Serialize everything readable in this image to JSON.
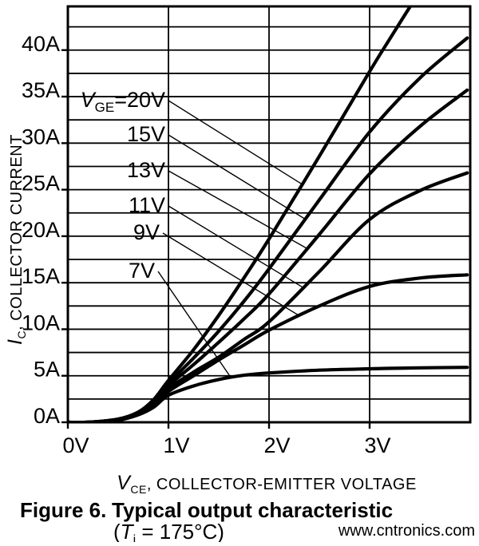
{
  "chart_data": {
    "type": "line",
    "title": "Typical output characteristic",
    "xlabel": "VCE, COLLECTOR-EMITTER VOLTAGE",
    "ylabel": "IC, COLLECTOR CURRENT",
    "xlabel_parts": {
      "var": "V",
      "sub": "CE",
      "rest": ",  COLLECTOR-EMITTER VOLTAGE"
    },
    "ylabel_parts": {
      "var": "I",
      "sub": "C",
      "rest": ",  COLLECTOR CURRENT"
    },
    "xlim": [
      0,
      4
    ],
    "ylim": [
      0,
      44.7
    ],
    "x_gridline_step": 1,
    "y_gridline_step": 2.5,
    "grid": true,
    "legend_position": "inline-labels-upper-left",
    "x_ticks": [
      {
        "v": 0,
        "label": "0V"
      },
      {
        "v": 1,
        "label": "1V"
      },
      {
        "v": 2,
        "label": "2V"
      },
      {
        "v": 3,
        "label": "3V"
      }
    ],
    "y_ticks": [
      {
        "v": 0,
        "label": "0A"
      },
      {
        "v": 5,
        "label": "5A"
      },
      {
        "v": 10,
        "label": "10A"
      },
      {
        "v": 15,
        "label": "15A"
      },
      {
        "v": 20,
        "label": "20A"
      },
      {
        "v": 25,
        "label": "25A"
      },
      {
        "v": 30,
        "label": "30A"
      },
      {
        "v": 35,
        "label": "35A"
      },
      {
        "v": 40,
        "label": "40A"
      }
    ],
    "series": [
      {
        "name": "VGE=20V",
        "label": {
          "var": "V",
          "sub": "GE",
          "text": "=20V"
        },
        "points": [
          [
            0,
            0
          ],
          [
            0.2,
            0
          ],
          [
            0.5,
            0.35
          ],
          [
            0.7,
            1.1
          ],
          [
            0.85,
            2.4
          ],
          [
            1.0,
            4.5
          ],
          [
            1.25,
            7.8
          ],
          [
            1.5,
            11.5
          ],
          [
            1.75,
            15.5
          ],
          [
            2.0,
            19.7
          ],
          [
            2.5,
            28.6
          ],
          [
            3.0,
            37.7
          ],
          [
            3.2,
            41.2
          ],
          [
            3.45,
            45.5
          ]
        ]
      },
      {
        "name": "15V",
        "label": {
          "text": "15V"
        },
        "points": [
          [
            0,
            0
          ],
          [
            0.2,
            0
          ],
          [
            0.5,
            0.3
          ],
          [
            0.7,
            1.0
          ],
          [
            0.85,
            2.2
          ],
          [
            1.0,
            4.2
          ],
          [
            1.25,
            6.9
          ],
          [
            1.5,
            9.8
          ],
          [
            1.75,
            13.0
          ],
          [
            2.0,
            16.5
          ],
          [
            2.5,
            23.9
          ],
          [
            3.0,
            31.2
          ],
          [
            3.5,
            37.0
          ],
          [
            3.97,
            41.3
          ]
        ]
      },
      {
        "name": "13V",
        "label": {
          "text": "13V"
        },
        "points": [
          [
            0,
            0
          ],
          [
            0.2,
            0
          ],
          [
            0.5,
            0.3
          ],
          [
            0.7,
            0.95
          ],
          [
            0.85,
            2.0
          ],
          [
            1.0,
            3.9
          ],
          [
            1.25,
            6.2
          ],
          [
            1.5,
            8.6
          ],
          [
            1.75,
            11.1
          ],
          [
            2.0,
            13.8
          ],
          [
            2.5,
            20.2
          ],
          [
            3.0,
            26.7
          ],
          [
            3.5,
            31.8
          ],
          [
            3.97,
            35.7
          ]
        ]
      },
      {
        "name": "11V",
        "label": {
          "text": "11V"
        },
        "points": [
          [
            0,
            0
          ],
          [
            0.2,
            0
          ],
          [
            0.5,
            0.28
          ],
          [
            0.7,
            0.9
          ],
          [
            0.85,
            1.85
          ],
          [
            1.0,
            3.6
          ],
          [
            1.25,
            5.4
          ],
          [
            1.5,
            7.0
          ],
          [
            1.75,
            8.9
          ],
          [
            2.0,
            10.8
          ],
          [
            2.5,
            16.2
          ],
          [
            3.0,
            21.8
          ],
          [
            3.5,
            24.9
          ],
          [
            3.97,
            26.8
          ]
        ]
      },
      {
        "name": "9V",
        "label": {
          "text": "9V"
        },
        "points": [
          [
            0,
            0
          ],
          [
            0.2,
            0
          ],
          [
            0.5,
            0.25
          ],
          [
            0.7,
            0.85
          ],
          [
            0.85,
            1.7
          ],
          [
            1.0,
            3.3
          ],
          [
            1.25,
            5.0
          ],
          [
            1.5,
            6.7
          ],
          [
            1.75,
            8.3
          ],
          [
            2.0,
            9.9
          ],
          [
            2.5,
            12.5
          ],
          [
            3.0,
            14.6
          ],
          [
            3.5,
            15.5
          ],
          [
            3.97,
            15.85
          ]
        ]
      },
      {
        "name": "7V",
        "label": {
          "text": "7V"
        },
        "points": [
          [
            0,
            0
          ],
          [
            0.2,
            0
          ],
          [
            0.5,
            0.22
          ],
          [
            0.7,
            0.8
          ],
          [
            0.85,
            1.6
          ],
          [
            1.0,
            2.9
          ],
          [
            1.25,
            3.9
          ],
          [
            1.5,
            4.6
          ],
          [
            1.75,
            5.05
          ],
          [
            2.0,
            5.3
          ],
          [
            2.5,
            5.6
          ],
          [
            3.0,
            5.75
          ],
          [
            3.5,
            5.85
          ],
          [
            3.97,
            5.9
          ]
        ]
      }
    ],
    "colors": {
      "curve": "#000000",
      "grid": "#000000",
      "frame": "#000000"
    }
  },
  "caption": {
    "figure": "Figure 6.",
    "title": "Typical output characteristic",
    "sub_pre": "(",
    "sub_var": "T",
    "sub_sub": "i",
    "sub_rest": " = 175°C)"
  },
  "watermark": {
    "text": "www.cntronics.com",
    "color": "#a6d5a6"
  }
}
